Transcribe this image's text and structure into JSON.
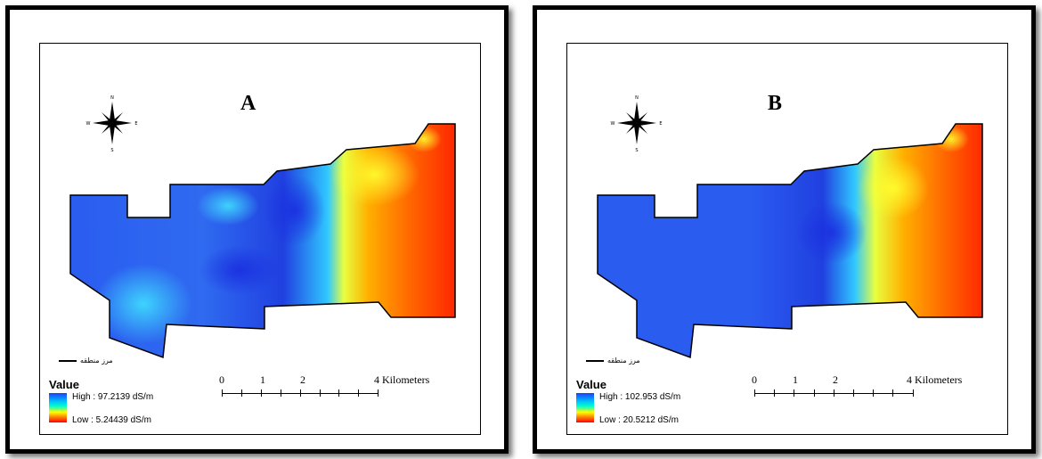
{
  "panels": [
    {
      "letter": "A",
      "legend_title": "Value",
      "high_label": "High : 97.2139 dS/m",
      "low_label": "Low : 5.24439 dS/m",
      "boundary_label": "مرز منطقه",
      "scale_numbers": [
        "0",
        "1",
        "2",
        "4 Kilometers"
      ]
    },
    {
      "letter": "B",
      "legend_title": "Value",
      "high_label": "High : 102.953 dS/m",
      "low_label": "Low : 20.5212 dS/m",
      "boundary_label": "مرز منطقه",
      "scale_numbers": [
        "0",
        "1",
        "2",
        "4 Kilometers"
      ]
    }
  ],
  "north_arrow_labels": {
    "n": "N",
    "s": "S",
    "e": "E",
    "w": "W"
  },
  "icons": [
    "north-arrow-icon"
  ],
  "colors": {
    "high": "#1e3cff",
    "mid": "#00ffd0",
    "low": "#ff0000"
  }
}
